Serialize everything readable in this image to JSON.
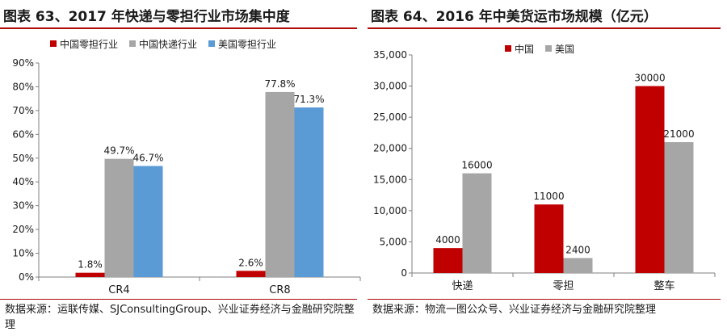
{
  "left": {
    "title": "图表 63、2017 年快递与零担行业市场集中度",
    "source": "数据来源：运联传媒、SJConsultingGroup、兴业证券经济与金融研究院整理",
    "chart_data": {
      "type": "bar",
      "categories": [
        "CR4",
        "CR8"
      ],
      "series": [
        {
          "name": "中国零担行业",
          "values": [
            1.8,
            2.6
          ],
          "color": "#c00000"
        },
        {
          "name": "中国快递行业",
          "values": [
            49.7,
            77.8
          ],
          "color": "#a6a6a6"
        },
        {
          "name": "美国零担行业",
          "values": [
            46.7,
            71.3
          ],
          "color": "#5b9bd5"
        }
      ],
      "data_labels": [
        [
          "1.8%",
          "2.6%"
        ],
        [
          "49.7%",
          "77.8%"
        ],
        [
          "46.7%",
          "71.3%"
        ]
      ],
      "yticks": [
        "0%",
        "10%",
        "20%",
        "30%",
        "40%",
        "50%",
        "60%",
        "70%",
        "80%",
        "90%"
      ],
      "ylim": [
        0,
        90
      ],
      "legend_position": "top",
      "grid": false
    }
  },
  "right": {
    "title": "图表 64、2016 年中美货运市场规模（亿元）",
    "source": "数据来源：物流一图公众号、兴业证券经济与金融研究院整理",
    "chart_data": {
      "type": "bar",
      "categories": [
        "快递",
        "零担",
        "整车"
      ],
      "series": [
        {
          "name": "中国",
          "values": [
            4000,
            11000,
            30000
          ],
          "color": "#c00000"
        },
        {
          "name": "美国",
          "values": [
            16000,
            2400,
            21000
          ],
          "color": "#a6a6a6"
        }
      ],
      "data_labels": [
        [
          "4000",
          "11000",
          "30000"
        ],
        [
          "16000",
          "2400",
          "21000"
        ]
      ],
      "yticks": [
        "0",
        "5,000",
        "10,000",
        "15,000",
        "20,000",
        "25,000",
        "30,000",
        "35,000"
      ],
      "ylim": [
        0,
        35000
      ],
      "legend_position": "top-left",
      "grid": false
    }
  }
}
